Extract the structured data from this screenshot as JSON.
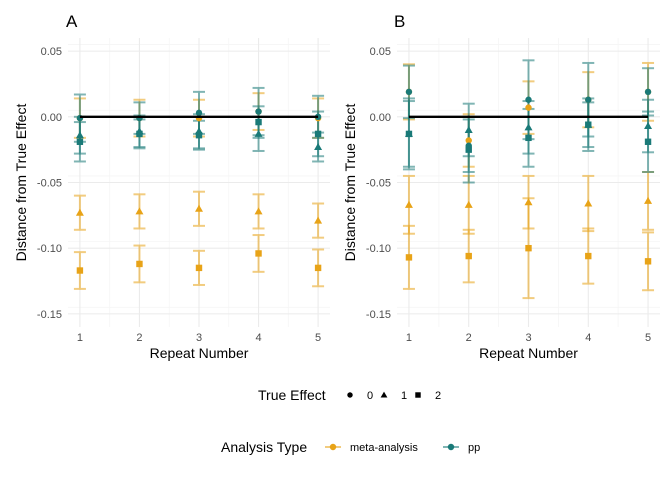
{
  "chart_data": [
    {
      "type": "scatter",
      "title": "A",
      "xlabel": "Repeat Number",
      "ylabel": "Distance from True Effect",
      "x_ticks": [
        "1",
        "2",
        "3",
        "4",
        "5"
      ],
      "y_ticks": [
        "0.05",
        "0.00",
        "-0.05",
        "-0.10",
        "-0.15"
      ],
      "xlim": [
        0.8,
        5.2
      ],
      "ylim": [
        -0.16,
        0.06
      ],
      "grid": true,
      "reference_line_y": 0,
      "series": [
        {
          "analysis": "meta-analysis",
          "true_effect": "0",
          "x": [
            1,
            2,
            3,
            4,
            5
          ],
          "y": [
            -0.001,
            -0.001,
            -0.001,
            0.004,
            -0.001
          ],
          "err": [
            0.015,
            0.014,
            0.014,
            0.014,
            0.015
          ]
        },
        {
          "analysis": "meta-analysis",
          "true_effect": "1",
          "x": [
            1,
            2,
            3,
            4,
            5
          ],
          "y": [
            -0.073,
            -0.072,
            -0.07,
            -0.072,
            -0.079
          ],
          "err": [
            0.013,
            0.013,
            0.013,
            0.013,
            0.013
          ]
        },
        {
          "analysis": "meta-analysis",
          "true_effect": "2",
          "x": [
            1,
            2,
            3,
            4,
            5
          ],
          "y": [
            -0.117,
            -0.112,
            -0.115,
            -0.104,
            -0.115
          ],
          "err": [
            0.014,
            0.014,
            0.013,
            0.014,
            0.014
          ]
        },
        {
          "analysis": "pp",
          "true_effect": "0",
          "x": [
            1,
            2,
            3,
            4,
            5
          ],
          "y": [
            -0.001,
            -0.001,
            0.003,
            0.004,
            0.0
          ],
          "err": [
            0.018,
            0.012,
            0.016,
            0.018,
            0.016
          ]
        },
        {
          "analysis": "pp",
          "true_effect": "1",
          "x": [
            1,
            2,
            3,
            4,
            5
          ],
          "y": [
            -0.014,
            -0.011,
            -0.011,
            -0.013,
            -0.023
          ],
          "err": [
            0.014,
            0.012,
            0.013,
            0.013,
            0.011
          ]
        },
        {
          "analysis": "pp",
          "true_effect": "2",
          "x": [
            1,
            2,
            3,
            4,
            5
          ],
          "y": [
            -0.019,
            -0.013,
            -0.014,
            -0.004,
            -0.013
          ],
          "err": [
            0.015,
            0.011,
            0.011,
            0.012,
            0.017
          ]
        }
      ]
    },
    {
      "type": "scatter",
      "title": "B",
      "xlabel": "Repeat Number",
      "ylabel": "Distance from True Effect",
      "x_ticks": [
        "1",
        "2",
        "3",
        "4",
        "5"
      ],
      "y_ticks": [
        "0.05",
        "0.00",
        "-0.05",
        "-0.10",
        "-0.15"
      ],
      "xlim": [
        0.8,
        5.2
      ],
      "ylim": [
        -0.16,
        0.06
      ],
      "grid": true,
      "reference_line_y": 0,
      "series": [
        {
          "analysis": "meta-analysis",
          "true_effect": "0",
          "x": [
            1,
            2,
            3,
            4,
            5
          ],
          "y": [
            0.019,
            -0.018,
            0.007,
            0.013,
            0.019
          ],
          "err": [
            0.021,
            0.02,
            0.02,
            0.021,
            0.022
          ]
        },
        {
          "analysis": "meta-analysis",
          "true_effect": "1",
          "x": [
            1,
            2,
            3,
            4,
            5
          ],
          "y": [
            -0.067,
            -0.067,
            -0.065,
            -0.066,
            -0.064
          ],
          "err": [
            0.022,
            0.022,
            0.02,
            0.021,
            0.022
          ]
        },
        {
          "analysis": "meta-analysis",
          "true_effect": "2",
          "x": [
            1,
            2,
            3,
            4,
            5
          ],
          "y": [
            -0.107,
            -0.106,
            -0.1,
            -0.106,
            -0.11
          ],
          "err": [
            0.024,
            0.02,
            0.038,
            0.021,
            0.022
          ]
        },
        {
          "analysis": "pp",
          "true_effect": "0",
          "x": [
            1,
            2,
            3,
            4,
            5
          ],
          "y": [
            0.019,
            -0.022,
            0.013,
            0.013,
            0.019
          ],
          "err": [
            0.02,
            0.02,
            0.03,
            0.028,
            0.018
          ]
        },
        {
          "analysis": "pp",
          "true_effect": "1",
          "x": [
            1,
            2,
            3,
            4,
            5
          ],
          "y": [
            -0.013,
            -0.01,
            -0.008,
            -0.006,
            -0.007
          ],
          "err": [
            0.027,
            0.02,
            0.02,
            0.02,
            0.02
          ]
        },
        {
          "analysis": "pp",
          "true_effect": "2",
          "x": [
            1,
            2,
            3,
            4,
            5
          ],
          "y": [
            -0.013,
            -0.025,
            -0.016,
            -0.006,
            -0.019
          ],
          "err": [
            0.025,
            0.025,
            0.022,
            0.017,
            0.023
          ]
        }
      ]
    }
  ],
  "legend_shape": {
    "title": "True Effect",
    "items": [
      {
        "label": "0",
        "shape": "circle"
      },
      {
        "label": "1",
        "shape": "triangle"
      },
      {
        "label": "2",
        "shape": "square"
      }
    ]
  },
  "legend_color": {
    "title": "Analysis Type",
    "items": [
      {
        "label": "meta-analysis",
        "color": "#E8A317"
      },
      {
        "label": "pp",
        "color": "#1A7A78"
      }
    ]
  },
  "colors": {
    "meta-analysis": "#E8A317",
    "pp": "#1A7A78",
    "grid_major": "#EBEBEB",
    "grid_minor": "#F5F5F5",
    "reference_line": "#000000"
  }
}
